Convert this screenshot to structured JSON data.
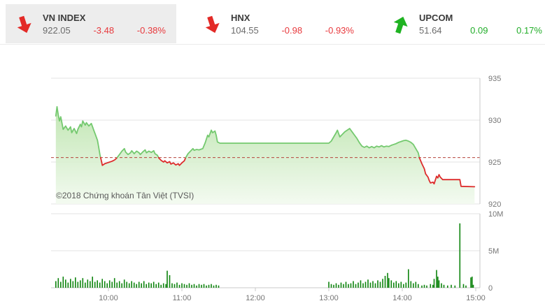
{
  "header": {
    "indices": [
      {
        "name": "VN INDEX",
        "value": "922.05",
        "change": "-3.48",
        "change_pct": "-0.38%",
        "direction": "down",
        "active": true
      },
      {
        "name": "HNX",
        "value": "104.55",
        "change": "-0.98",
        "change_pct": "-0.93%",
        "direction": "down",
        "active": false
      },
      {
        "name": "UPCOM",
        "value": "51.64",
        "change": "0.09",
        "change_pct": "0.17%",
        "direction": "up",
        "active": false
      }
    ]
  },
  "copyright": "©2018 Chứng khoán Tân Việt (TVSI)",
  "colors": {
    "negative": "#e8393d",
    "positive": "#21ad28",
    "arrow_down": "#e32a27",
    "arrow_up": "#1fb322",
    "price_line_above": "#74c96f",
    "price_line_below": "#dd2c2c",
    "reference_line": "#b5443c",
    "area_fill_top": "#a6db92",
    "area_fill_bottom": "#f2faef",
    "volume_bar": "#0e840e",
    "grid": "#e3e3e3",
    "axis": "#c9c9c9",
    "axis_label": "#757575",
    "copyright_text": "#5a5a5a"
  },
  "chart_data": [
    {
      "type": "area",
      "title": "VN-Index intraday price",
      "x_unit": "minutes since 09:15",
      "session": {
        "start": "09:15",
        "end": "15:00",
        "lunch_break_t": [
          136,
          225
        ]
      },
      "reference_price": 925.53,
      "ylim": [
        920,
        935
      ],
      "y_ticks": [
        920,
        925,
        930,
        935
      ],
      "x_ticks": [
        {
          "t": 45,
          "label": "10:00"
        },
        {
          "t": 105,
          "label": "11:00"
        },
        {
          "t": 165,
          "label": "12:00"
        },
        {
          "t": 225,
          "label": "13:00"
        },
        {
          "t": 285,
          "label": "14:00"
        },
        {
          "t": 345,
          "label": "15:00"
        }
      ],
      "grid": true,
      "legend": false,
      "points": [
        [
          2,
          930.5
        ],
        [
          3,
          931.6
        ],
        [
          4,
          930.6
        ],
        [
          5,
          929.9
        ],
        [
          6,
          930.4
        ],
        [
          8,
          928.9
        ],
        [
          10,
          929.3
        ],
        [
          12,
          928.8
        ],
        [
          14,
          929.2
        ],
        [
          15,
          928.5
        ],
        [
          17,
          929.0
        ],
        [
          19,
          928.4
        ],
        [
          20,
          928.9
        ],
        [
          22,
          929.5
        ],
        [
          23,
          929.2
        ],
        [
          24,
          929.9
        ],
        [
          26,
          929.4
        ],
        [
          27,
          929.7
        ],
        [
          29,
          929.3
        ],
        [
          31,
          929.6
        ],
        [
          32,
          929.2
        ],
        [
          33,
          928.8
        ],
        [
          34,
          928.4
        ],
        [
          36,
          927.6
        ],
        [
          37,
          926.8
        ],
        [
          38,
          925.9
        ],
        [
          39,
          925.3
        ],
        [
          40,
          924.6
        ],
        [
          42,
          924.8
        ],
        [
          44,
          924.9
        ],
        [
          46,
          925.0
        ],
        [
          48,
          925.1
        ],
        [
          50,
          925.25
        ],
        [
          52,
          925.5
        ],
        [
          54,
          925.9
        ],
        [
          56,
          926.3
        ],
        [
          58,
          926.6
        ],
        [
          59,
          926.2
        ],
        [
          61,
          925.9
        ],
        [
          63,
          926.1
        ],
        [
          64,
          926.35
        ],
        [
          66,
          926.0
        ],
        [
          68,
          926.3
        ],
        [
          70,
          926.1
        ],
        [
          71,
          925.9
        ],
        [
          73,
          926.2
        ],
        [
          75,
          926.45
        ],
        [
          76,
          926.1
        ],
        [
          78,
          926.3
        ],
        [
          80,
          926.15
        ],
        [
          82,
          926.35
        ],
        [
          83,
          926.0
        ],
        [
          85,
          925.8
        ],
        [
          86,
          925.5
        ],
        [
          88,
          925.2
        ],
        [
          90,
          925.0
        ],
        [
          91,
          925.15
        ],
        [
          93,
          924.9
        ],
        [
          95,
          925.05
        ],
        [
          96,
          924.75
        ],
        [
          98,
          924.9
        ],
        [
          100,
          924.65
        ],
        [
          102,
          924.8
        ],
        [
          103,
          924.6
        ],
        [
          105,
          924.9
        ],
        [
          107,
          925.15
        ],
        [
          108,
          925.5
        ],
        [
          110,
          926.0
        ],
        [
          112,
          926.3
        ],
        [
          114,
          926.6
        ],
        [
          115,
          926.4
        ],
        [
          117,
          926.5
        ],
        [
          119,
          926.45
        ],
        [
          121,
          926.55
        ],
        [
          122,
          926.6
        ],
        [
          124,
          927.3
        ],
        [
          126,
          928.2
        ],
        [
          127,
          928.0
        ],
        [
          129,
          928.8
        ],
        [
          130,
          928.5
        ],
        [
          132,
          928.7
        ],
        [
          133,
          928.2
        ],
        [
          134,
          927.4
        ],
        [
          136,
          927.25
        ],
        [
          225,
          927.25
        ],
        [
          227,
          927.5
        ],
        [
          229,
          928.0
        ],
        [
          231,
          928.5
        ],
        [
          232,
          928.8
        ],
        [
          233,
          928.4
        ],
        [
          234,
          928.0
        ],
        [
          236,
          928.3
        ],
        [
          238,
          928.6
        ],
        [
          240,
          928.8
        ],
        [
          242,
          929.0
        ],
        [
          244,
          928.6
        ],
        [
          246,
          928.2
        ],
        [
          248,
          927.8
        ],
        [
          250,
          927.3
        ],
        [
          252,
          926.9
        ],
        [
          254,
          926.75
        ],
        [
          256,
          926.9
        ],
        [
          258,
          926.7
        ],
        [
          260,
          926.85
        ],
        [
          262,
          926.7
        ],
        [
          264,
          926.9
        ],
        [
          266,
          926.8
        ],
        [
          268,
          926.95
        ],
        [
          270,
          926.8
        ],
        [
          272,
          926.9
        ],
        [
          274,
          926.85
        ],
        [
          276,
          927.0
        ],
        [
          278,
          927.1
        ],
        [
          280,
          927.2
        ],
        [
          282,
          927.35
        ],
        [
          284,
          927.45
        ],
        [
          286,
          927.55
        ],
        [
          288,
          927.6
        ],
        [
          290,
          927.5
        ],
        [
          292,
          927.35
        ],
        [
          294,
          927.1
        ],
        [
          296,
          926.6
        ],
        [
          298,
          926.1
        ],
        [
          299,
          925.5
        ],
        [
          301,
          924.8
        ],
        [
          303,
          924.2
        ],
        [
          304,
          923.6
        ],
        [
          306,
          923.2
        ],
        [
          307,
          922.8
        ],
        [
          308,
          922.5
        ],
        [
          310,
          922.6
        ],
        [
          311,
          922.4
        ],
        [
          313,
          923.3
        ],
        [
          314,
          923.1
        ],
        [
          315,
          923.5
        ],
        [
          316,
          923.2
        ],
        [
          318,
          922.9
        ],
        [
          332,
          922.9
        ],
        [
          333,
          922.1
        ],
        [
          344,
          922.05
        ]
      ]
    },
    {
      "type": "bar",
      "title": "Trading volume",
      "unit": "million shares",
      "ylim": [
        0,
        10.7
      ],
      "y_ticks": [
        {
          "v": 0,
          "label": "0"
        },
        {
          "v": 5,
          "label": "5M"
        },
        {
          "v": 10,
          "label": "10M"
        }
      ],
      "bars": [
        [
          2,
          0.9
        ],
        [
          4,
          1.3
        ],
        [
          6,
          0.8
        ],
        [
          8,
          1.5
        ],
        [
          10,
          1.1
        ],
        [
          12,
          0.7
        ],
        [
          14,
          1.2
        ],
        [
          16,
          0.9
        ],
        [
          18,
          1.4
        ],
        [
          20,
          0.8
        ],
        [
          22,
          1.0
        ],
        [
          24,
          1.3
        ],
        [
          26,
          0.7
        ],
        [
          28,
          1.1
        ],
        [
          30,
          0.9
        ],
        [
          32,
          1.5
        ],
        [
          34,
          0.8
        ],
        [
          36,
          1.0
        ],
        [
          38,
          0.7
        ],
        [
          40,
          1.2
        ],
        [
          42,
          0.9
        ],
        [
          44,
          0.6
        ],
        [
          46,
          1.0
        ],
        [
          48,
          0.8
        ],
        [
          50,
          1.3
        ],
        [
          52,
          0.7
        ],
        [
          54,
          0.9
        ],
        [
          56,
          0.6
        ],
        [
          58,
          1.1
        ],
        [
          60,
          0.8
        ],
        [
          62,
          0.6
        ],
        [
          64,
          0.9
        ],
        [
          66,
          0.7
        ],
        [
          68,
          0.5
        ],
        [
          70,
          0.8
        ],
        [
          72,
          0.6
        ],
        [
          74,
          0.9
        ],
        [
          76,
          0.5
        ],
        [
          78,
          0.7
        ],
        [
          80,
          0.6
        ],
        [
          82,
          0.8
        ],
        [
          84,
          0.5
        ],
        [
          86,
          0.7
        ],
        [
          88,
          0.4
        ],
        [
          90,
          0.6
        ],
        [
          92,
          0.5
        ],
        [
          93,
          2.3
        ],
        [
          95,
          1.7
        ],
        [
          97,
          0.6
        ],
        [
          99,
          0.5
        ],
        [
          101,
          0.7
        ],
        [
          103,
          0.4
        ],
        [
          105,
          0.6
        ],
        [
          107,
          0.5
        ],
        [
          109,
          0.4
        ],
        [
          111,
          0.6
        ],
        [
          113,
          0.4
        ],
        [
          115,
          0.5
        ],
        [
          117,
          0.3
        ],
        [
          119,
          0.5
        ],
        [
          121,
          0.4
        ],
        [
          123,
          0.5
        ],
        [
          125,
          0.3
        ],
        [
          127,
          0.4
        ],
        [
          129,
          0.5
        ],
        [
          131,
          0.3
        ],
        [
          133,
          0.4
        ],
        [
          135,
          0.3
        ],
        [
          225,
          0.8
        ],
        [
          227,
          0.5
        ],
        [
          229,
          0.4
        ],
        [
          231,
          0.6
        ],
        [
          233,
          0.4
        ],
        [
          235,
          0.7
        ],
        [
          237,
          0.5
        ],
        [
          239,
          0.8
        ],
        [
          241,
          0.5
        ],
        [
          243,
          0.6
        ],
        [
          245,
          0.9
        ],
        [
          247,
          0.5
        ],
        [
          249,
          0.7
        ],
        [
          251,
          1.0
        ],
        [
          253,
          0.6
        ],
        [
          255,
          0.8
        ],
        [
          257,
          1.1
        ],
        [
          259,
          0.7
        ],
        [
          261,
          0.9
        ],
        [
          263,
          0.6
        ],
        [
          265,
          1.0
        ],
        [
          267,
          0.8
        ],
        [
          269,
          1.2
        ],
        [
          271,
          1.6
        ],
        [
          273,
          2.0
        ],
        [
          274,
          1.3
        ],
        [
          276,
          1.0
        ],
        [
          278,
          0.7
        ],
        [
          280,
          0.9
        ],
        [
          282,
          0.6
        ],
        [
          284,
          0.8
        ],
        [
          286,
          0.5
        ],
        [
          288,
          0.7
        ],
        [
          290,
          2.5
        ],
        [
          292,
          0.9
        ],
        [
          294,
          0.6
        ],
        [
          296,
          0.8
        ],
        [
          298,
          0.5
        ],
        [
          301,
          0.3
        ],
        [
          303,
          0.4
        ],
        [
          305,
          0.3
        ],
        [
          308,
          0.5
        ],
        [
          310,
          0.4
        ],
        [
          311,
          1.2
        ],
        [
          313,
          2.4
        ],
        [
          314,
          1.5
        ],
        [
          315,
          1.0
        ],
        [
          317,
          0.6
        ],
        [
          319,
          0.4
        ],
        [
          322,
          0.3
        ],
        [
          325,
          0.4
        ],
        [
          328,
          0.3
        ],
        [
          332,
          8.7
        ],
        [
          335,
          0.5
        ],
        [
          337,
          0.3
        ],
        [
          341,
          1.4
        ],
        [
          342,
          1.5
        ],
        [
          343,
          0.4
        ]
      ]
    }
  ]
}
